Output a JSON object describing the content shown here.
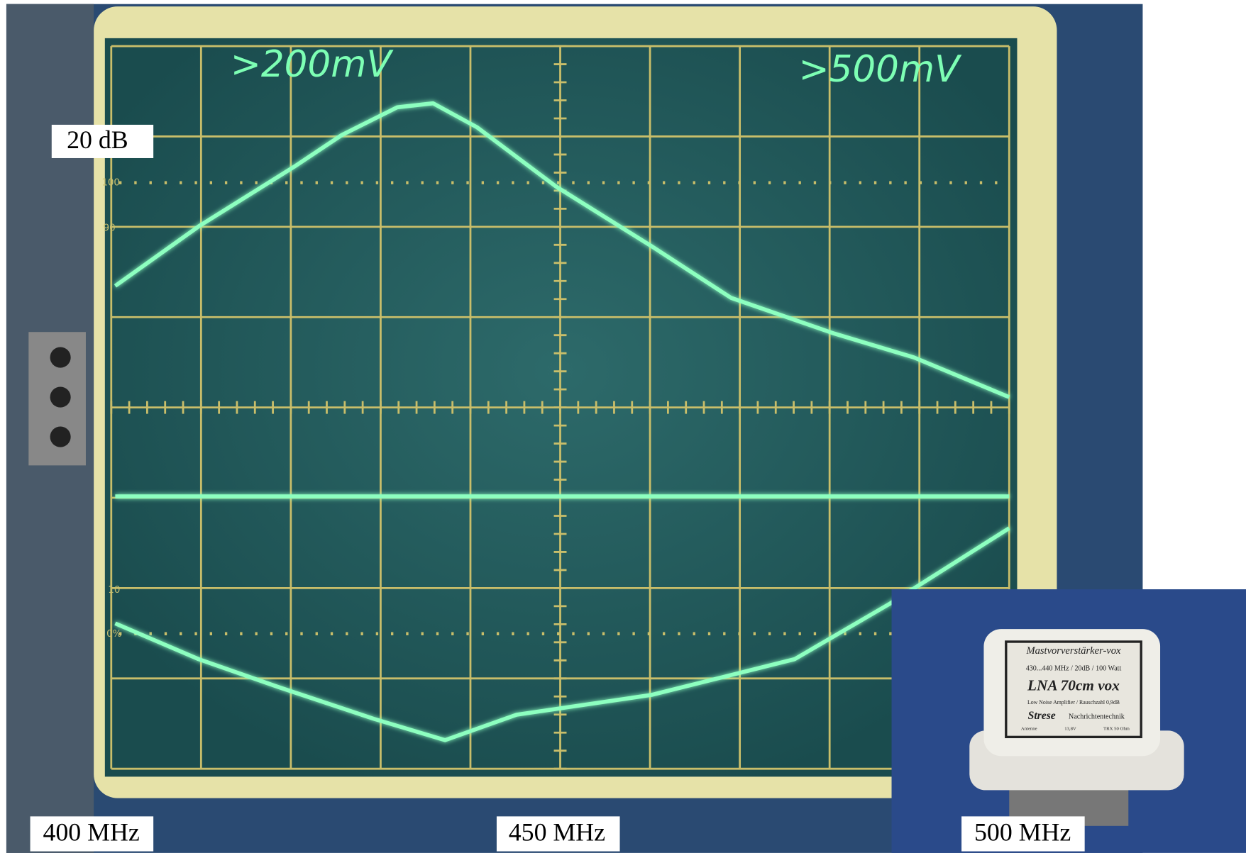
{
  "screen": {
    "left_range": ">200mV",
    "right_range": ">500mV",
    "graticule_labels": [
      "100",
      "90",
      "10",
      "0%"
    ]
  },
  "labels": {
    "gain": "20 dB",
    "freq_start": "400 MHz",
    "freq_mid": "450 MHz",
    "freq_end": "500 MHz"
  },
  "device": {
    "line1": "Mastvorverstärker-vox",
    "line2": "430...440 MHz / 20dB / 100 Watt",
    "line3": "LNA 70cm vox",
    "line4": "Low Noise Amplifier / Rauschzahl 0,9dB",
    "brand": "Strese",
    "brand_sub": "Nachrichtentechnik",
    "footer_left": "Antenne",
    "footer_mid": "13,8V",
    "footer_right": "TRX 50 Ohm"
  }
}
